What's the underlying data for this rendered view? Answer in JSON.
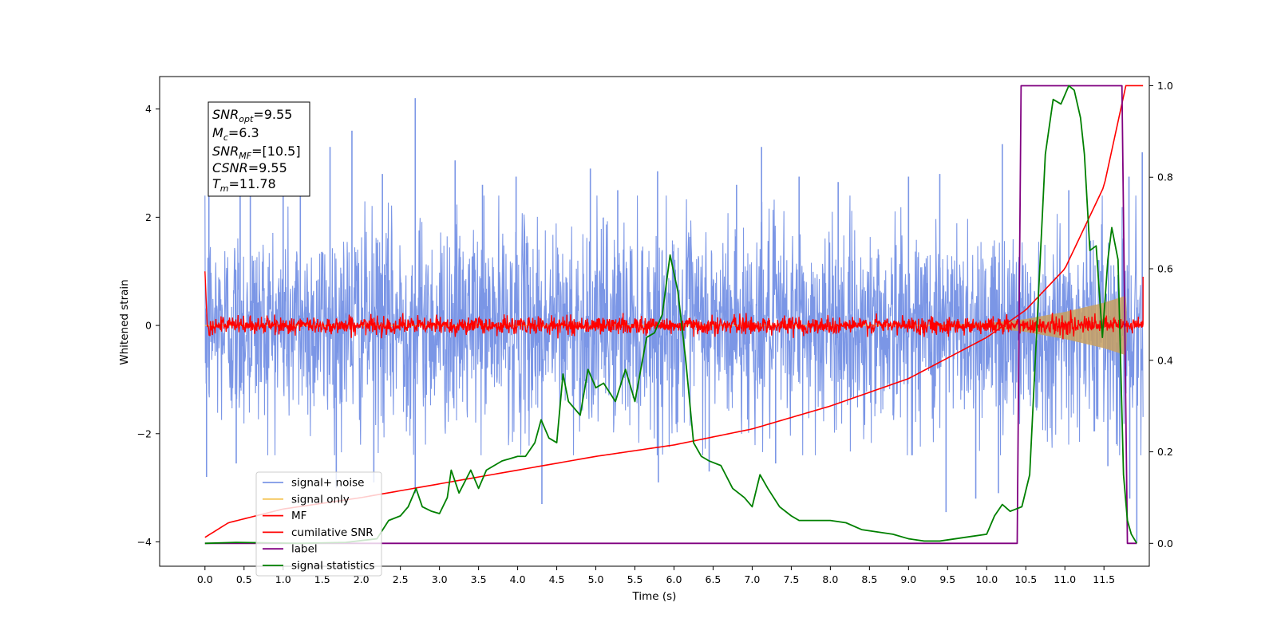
{
  "chart_data": {
    "type": "line",
    "xlabel": "Time (s)",
    "ylabel_left": "Whitened strain",
    "ylabel_right": "",
    "xlim": [
      -0.58,
      12.08
    ],
    "ylim_left": [
      -4.45,
      4.6
    ],
    "ylim_right": [
      -0.05,
      1.02
    ],
    "x_ticks": [
      "0.0",
      "0.5",
      "1.0",
      "1.5",
      "2.0",
      "2.5",
      "3.0",
      "3.5",
      "4.0",
      "4.5",
      "5.0",
      "5.5",
      "6.0",
      "6.5",
      "7.0",
      "7.5",
      "8.0",
      "8.5",
      "9.0",
      "9.5",
      "10.0",
      "10.5",
      "11.0",
      "11.5"
    ],
    "y_ticks_left": [
      "4",
      "2",
      "0",
      "−2",
      "−4"
    ],
    "y_ticks_right": [
      "1.0",
      "0.8",
      "0.6",
      "0.4",
      "0.2",
      "0.0"
    ],
    "grid": false,
    "legend_position": "lower-left",
    "annotation": {
      "snr_opt_value": "=9.55",
      "mc_value": "=6.3",
      "snr_mf_value": "=[10.5]",
      "csnr_value": "=9.55",
      "tm_value": "=11.78"
    },
    "series": [
      {
        "name": "signal+ noise",
        "axis": "left",
        "color": "#7b96e6",
        "kind": "noise",
        "amplitude_std": 1.0,
        "peak_points": [
          [
            0.05,
            2.6
          ],
          [
            0.45,
            2.9
          ],
          [
            0.58,
            2.6
          ],
          [
            1.0,
            2.8
          ],
          [
            1.22,
            3.0
          ],
          [
            1.6,
            3.3
          ],
          [
            1.88,
            3.6
          ],
          [
            2.27,
            2.8
          ],
          [
            2.69,
            4.2
          ],
          [
            3.2,
            3.05
          ],
          [
            3.55,
            2.6
          ],
          [
            3.98,
            2.75
          ],
          [
            4.93,
            2.9
          ],
          [
            5.28,
            2.5
          ],
          [
            5.79,
            2.85
          ],
          [
            6.8,
            2.6
          ],
          [
            7.12,
            3.3
          ],
          [
            7.6,
            2.75
          ],
          [
            8.1,
            2.65
          ],
          [
            9.0,
            2.75
          ],
          [
            9.4,
            2.8
          ],
          [
            10.2,
            3.35
          ],
          [
            11.05,
            2.5
          ],
          [
            11.82,
            2.75
          ],
          [
            11.99,
            3.2
          ]
        ],
        "trough_points": [
          [
            0.02,
            -2.8
          ],
          [
            0.4,
            -2.55
          ],
          [
            1.68,
            -3.0
          ],
          [
            2.16,
            -2.9
          ],
          [
            2.69,
            -3.1
          ],
          [
            4.31,
            -3.3
          ],
          [
            5.8,
            -2.9
          ],
          [
            6.45,
            -2.7
          ],
          [
            7.3,
            -2.55
          ],
          [
            9.48,
            -3.45
          ],
          [
            9.86,
            -3.2
          ],
          [
            10.15,
            -3.1
          ],
          [
            11.55,
            -2.6
          ],
          [
            11.83,
            -3.2
          ],
          [
            11.92,
            -4.0
          ]
        ]
      },
      {
        "name": "signal only",
        "axis": "left",
        "color": "#f5c65a",
        "kind": "chirp",
        "points": [
          [
            0,
            0.001
          ],
          [
            5,
            0.003
          ],
          [
            8,
            0.008
          ],
          [
            9.5,
            0.02
          ],
          [
            10.0,
            0.04
          ],
          [
            10.5,
            0.12
          ],
          [
            11.0,
            0.25
          ],
          [
            11.5,
            0.42
          ],
          [
            11.78,
            0.55
          ],
          [
            11.8,
            0.0
          ]
        ]
      },
      {
        "name": "MF",
        "axis": "left",
        "color": "#ff0000",
        "kind": "noise",
        "amplitude_std": 0.08,
        "points": [
          [
            0,
            1.0
          ],
          [
            0.02,
            0.1
          ]
        ]
      },
      {
        "name": "cumilative SNR",
        "axis": "right",
        "color": "#ff0000",
        "kind": "curve",
        "points": [
          [
            0,
            0.013
          ],
          [
            0.3,
            0.045
          ],
          [
            1.0,
            0.075
          ],
          [
            2.0,
            0.1
          ],
          [
            3.0,
            0.13
          ],
          [
            4.0,
            0.16
          ],
          [
            5.0,
            0.19
          ],
          [
            6.0,
            0.215
          ],
          [
            7.0,
            0.25
          ],
          [
            8.0,
            0.3
          ],
          [
            9.0,
            0.36
          ],
          [
            10.0,
            0.45
          ],
          [
            10.5,
            0.51
          ],
          [
            11.0,
            0.6
          ],
          [
            11.5,
            0.78
          ],
          [
            11.78,
            1.0
          ],
          [
            12.0,
            1.0
          ]
        ]
      },
      {
        "name": "label",
        "axis": "right",
        "color": "#800080",
        "kind": "step",
        "points": [
          [
            0,
            0
          ],
          [
            10.39,
            0
          ],
          [
            10.44,
            1.0
          ],
          [
            11.73,
            1.0
          ],
          [
            11.8,
            0
          ],
          [
            11.92,
            0
          ],
          [
            11.92,
            0.0
          ]
        ]
      },
      {
        "name": "signal statistics",
        "axis": "right",
        "color": "#008000",
        "kind": "line",
        "points": [
          [
            0.0,
            0.0
          ],
          [
            0.4,
            0.002
          ],
          [
            1.2,
            0.0
          ],
          [
            1.8,
            0.002
          ],
          [
            2.2,
            0.01
          ],
          [
            2.35,
            0.05
          ],
          [
            2.5,
            0.06
          ],
          [
            2.6,
            0.08
          ],
          [
            2.7,
            0.12
          ],
          [
            2.78,
            0.08
          ],
          [
            2.9,
            0.07
          ],
          [
            3.0,
            0.065
          ],
          [
            3.1,
            0.1
          ],
          [
            3.15,
            0.16
          ],
          [
            3.25,
            0.11
          ],
          [
            3.4,
            0.16
          ],
          [
            3.5,
            0.12
          ],
          [
            3.6,
            0.16
          ],
          [
            3.8,
            0.18
          ],
          [
            4.0,
            0.19
          ],
          [
            4.1,
            0.19
          ],
          [
            4.22,
            0.22
          ],
          [
            4.3,
            0.27
          ],
          [
            4.4,
            0.23
          ],
          [
            4.5,
            0.22
          ],
          [
            4.58,
            0.37
          ],
          [
            4.65,
            0.31
          ],
          [
            4.8,
            0.28
          ],
          [
            4.9,
            0.38
          ],
          [
            5.0,
            0.34
          ],
          [
            5.1,
            0.35
          ],
          [
            5.25,
            0.31
          ],
          [
            5.38,
            0.38
          ],
          [
            5.5,
            0.31
          ],
          [
            5.65,
            0.45
          ],
          [
            5.75,
            0.46
          ],
          [
            5.85,
            0.5
          ],
          [
            5.95,
            0.63
          ],
          [
            6.05,
            0.55
          ],
          [
            6.15,
            0.4
          ],
          [
            6.25,
            0.22
          ],
          [
            6.35,
            0.19
          ],
          [
            6.45,
            0.18
          ],
          [
            6.6,
            0.17
          ],
          [
            6.75,
            0.12
          ],
          [
            6.9,
            0.1
          ],
          [
            7.0,
            0.08
          ],
          [
            7.1,
            0.15
          ],
          [
            7.2,
            0.12
          ],
          [
            7.35,
            0.08
          ],
          [
            7.5,
            0.06
          ],
          [
            7.6,
            0.05
          ],
          [
            7.8,
            0.05
          ],
          [
            8.0,
            0.05
          ],
          [
            8.2,
            0.045
          ],
          [
            8.4,
            0.03
          ],
          [
            8.6,
            0.025
          ],
          [
            8.8,
            0.02
          ],
          [
            9.0,
            0.01
          ],
          [
            9.2,
            0.005
          ],
          [
            9.4,
            0.005
          ],
          [
            9.6,
            0.01
          ],
          [
            9.8,
            0.015
          ],
          [
            10.0,
            0.02
          ],
          [
            10.1,
            0.06
          ],
          [
            10.2,
            0.085
          ],
          [
            10.3,
            0.07
          ],
          [
            10.45,
            0.08
          ],
          [
            10.55,
            0.15
          ],
          [
            10.65,
            0.5
          ],
          [
            10.75,
            0.85
          ],
          [
            10.85,
            0.97
          ],
          [
            10.95,
            0.96
          ],
          [
            11.05,
            1.0
          ],
          [
            11.12,
            0.99
          ],
          [
            11.2,
            0.93
          ],
          [
            11.25,
            0.85
          ],
          [
            11.32,
            0.64
          ],
          [
            11.4,
            0.65
          ],
          [
            11.48,
            0.45
          ],
          [
            11.55,
            0.62
          ],
          [
            11.6,
            0.69
          ],
          [
            11.68,
            0.62
          ],
          [
            11.75,
            0.15
          ],
          [
            11.8,
            0.05
          ],
          [
            11.85,
            0.02
          ],
          [
            11.92,
            0.0
          ]
        ]
      }
    ]
  }
}
